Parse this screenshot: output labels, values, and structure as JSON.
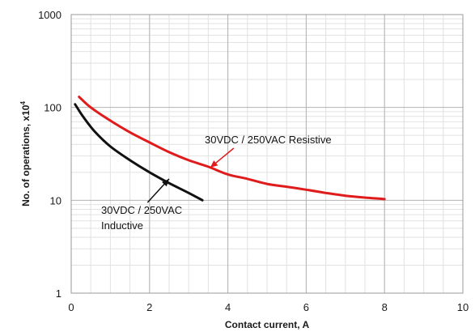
{
  "chart_data": {
    "type": "line",
    "title": "",
    "xlabel": "Contact current, A",
    "ylabel_prefix": "No. of operations, x10",
    "ylabel_exponent": "4",
    "xlim": [
      0,
      10
    ],
    "ylim": [
      1,
      1000
    ],
    "y_scale": "log",
    "grid": true,
    "x_ticks": [
      0,
      2,
      4,
      6,
      8,
      10
    ],
    "x_tick_labels": [
      "0",
      "2",
      "4",
      "6",
      "8",
      "10"
    ],
    "y_ticks": [
      1,
      10,
      100,
      1000
    ],
    "y_tick_labels": [
      "1",
      "10",
      "100",
      "1000"
    ],
    "series": [
      {
        "name": "30VDC / 250VAC Resistive",
        "color": "#e01b1b",
        "x": [
          0.2,
          0.5,
          1.0,
          1.5,
          2.0,
          2.5,
          3.0,
          3.5,
          4.0,
          4.5,
          5.0,
          5.5,
          6.0,
          6.5,
          7.0,
          7.5,
          8.0
        ],
        "y": [
          130,
          100,
          72,
          54,
          42,
          33,
          27,
          23,
          19,
          17,
          15,
          14,
          13,
          12,
          11.2,
          10.7,
          10.3
        ]
      },
      {
        "name": "30VDC / 250VAC Inductive",
        "color": "#111111",
        "x": [
          0.1,
          0.3,
          0.6,
          1.0,
          1.5,
          2.0,
          2.5,
          3.0,
          3.35
        ],
        "y": [
          108,
          80,
          55,
          38,
          27,
          20,
          15.3,
          12,
          10
        ]
      }
    ],
    "annotations": [
      {
        "text": "30VDC / 250VAC Resistive",
        "series": 0,
        "arrow_to": [
          3.55,
          22.5
        ]
      },
      {
        "lines": [
          "30VDC / 250VAC",
          "Inductive"
        ],
        "series": 1,
        "arrow_to": [
          2.5,
          17
        ]
      }
    ]
  }
}
